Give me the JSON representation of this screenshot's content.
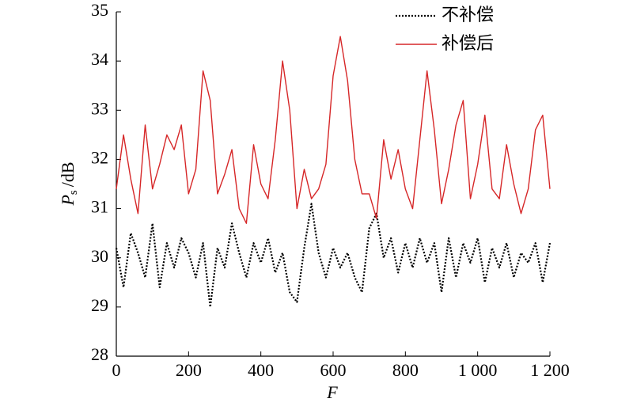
{
  "chart_data": {
    "type": "line",
    "xlabel": "F",
    "ylabel": {
      "main": "P",
      "sub": "s",
      "unit": "/dB"
    },
    "x": [
      0,
      20,
      40,
      60,
      80,
      100,
      120,
      140,
      160,
      180,
      200,
      220,
      240,
      260,
      280,
      300,
      320,
      340,
      360,
      380,
      400,
      420,
      440,
      460,
      480,
      500,
      520,
      540,
      560,
      580,
      600,
      620,
      640,
      660,
      680,
      700,
      720,
      740,
      760,
      780,
      800,
      820,
      840,
      860,
      880,
      900,
      920,
      940,
      960,
      980,
      1000,
      1020,
      1040,
      1060,
      1080,
      1100,
      1120,
      1140,
      1160,
      1180,
      1200
    ],
    "series": [
      {
        "name": "不补偿",
        "color": "#000000",
        "dash": "dotted",
        "values": [
          30.2,
          29.4,
          30.5,
          30.1,
          29.6,
          30.7,
          29.4,
          30.3,
          29.8,
          30.4,
          30.1,
          29.6,
          30.3,
          29.0,
          30.2,
          29.8,
          30.7,
          30.1,
          29.6,
          30.3,
          29.9,
          30.4,
          29.7,
          30.1,
          29.3,
          29.1,
          30.2,
          31.1,
          30.1,
          29.6,
          30.2,
          29.8,
          30.1,
          29.6,
          29.3,
          30.6,
          30.9,
          30.0,
          30.4,
          29.7,
          30.3,
          29.8,
          30.4,
          29.9,
          30.3,
          29.3,
          30.4,
          29.6,
          30.3,
          29.9,
          30.4,
          29.5,
          30.2,
          29.8,
          30.3,
          29.6,
          30.1,
          29.9,
          30.3,
          29.5,
          30.3
        ]
      },
      {
        "name": "补偿后",
        "color": "#d62728",
        "dash": "solid",
        "values": [
          31.4,
          32.5,
          31.6,
          30.9,
          32.7,
          31.4,
          31.9,
          32.5,
          32.2,
          32.7,
          31.3,
          31.8,
          33.8,
          33.2,
          31.3,
          31.7,
          32.2,
          31.0,
          30.7,
          32.3,
          31.5,
          31.2,
          32.4,
          34.0,
          33.0,
          31.0,
          31.8,
          31.2,
          31.4,
          31.9,
          33.7,
          34.5,
          33.6,
          32.0,
          31.3,
          31.3,
          30.8,
          32.4,
          31.6,
          32.2,
          31.4,
          31.0,
          32.4,
          33.8,
          32.6,
          31.1,
          31.8,
          32.7,
          33.2,
          31.2,
          31.9,
          32.9,
          31.4,
          31.2,
          32.3,
          31.5,
          30.9,
          31.4,
          32.6,
          32.9,
          31.4
        ]
      }
    ],
    "xlim": [
      0,
      1200
    ],
    "xticks": [
      0,
      200,
      400,
      600,
      800,
      {
        "value": 1000,
        "label": "1 000"
      },
      {
        "value": 1200,
        "label": "1 200"
      }
    ],
    "ylim": [
      28,
      35
    ],
    "yticks": [
      28,
      29,
      30,
      31,
      32,
      33,
      34,
      35
    ],
    "legend": "top-right",
    "grid": false
  }
}
